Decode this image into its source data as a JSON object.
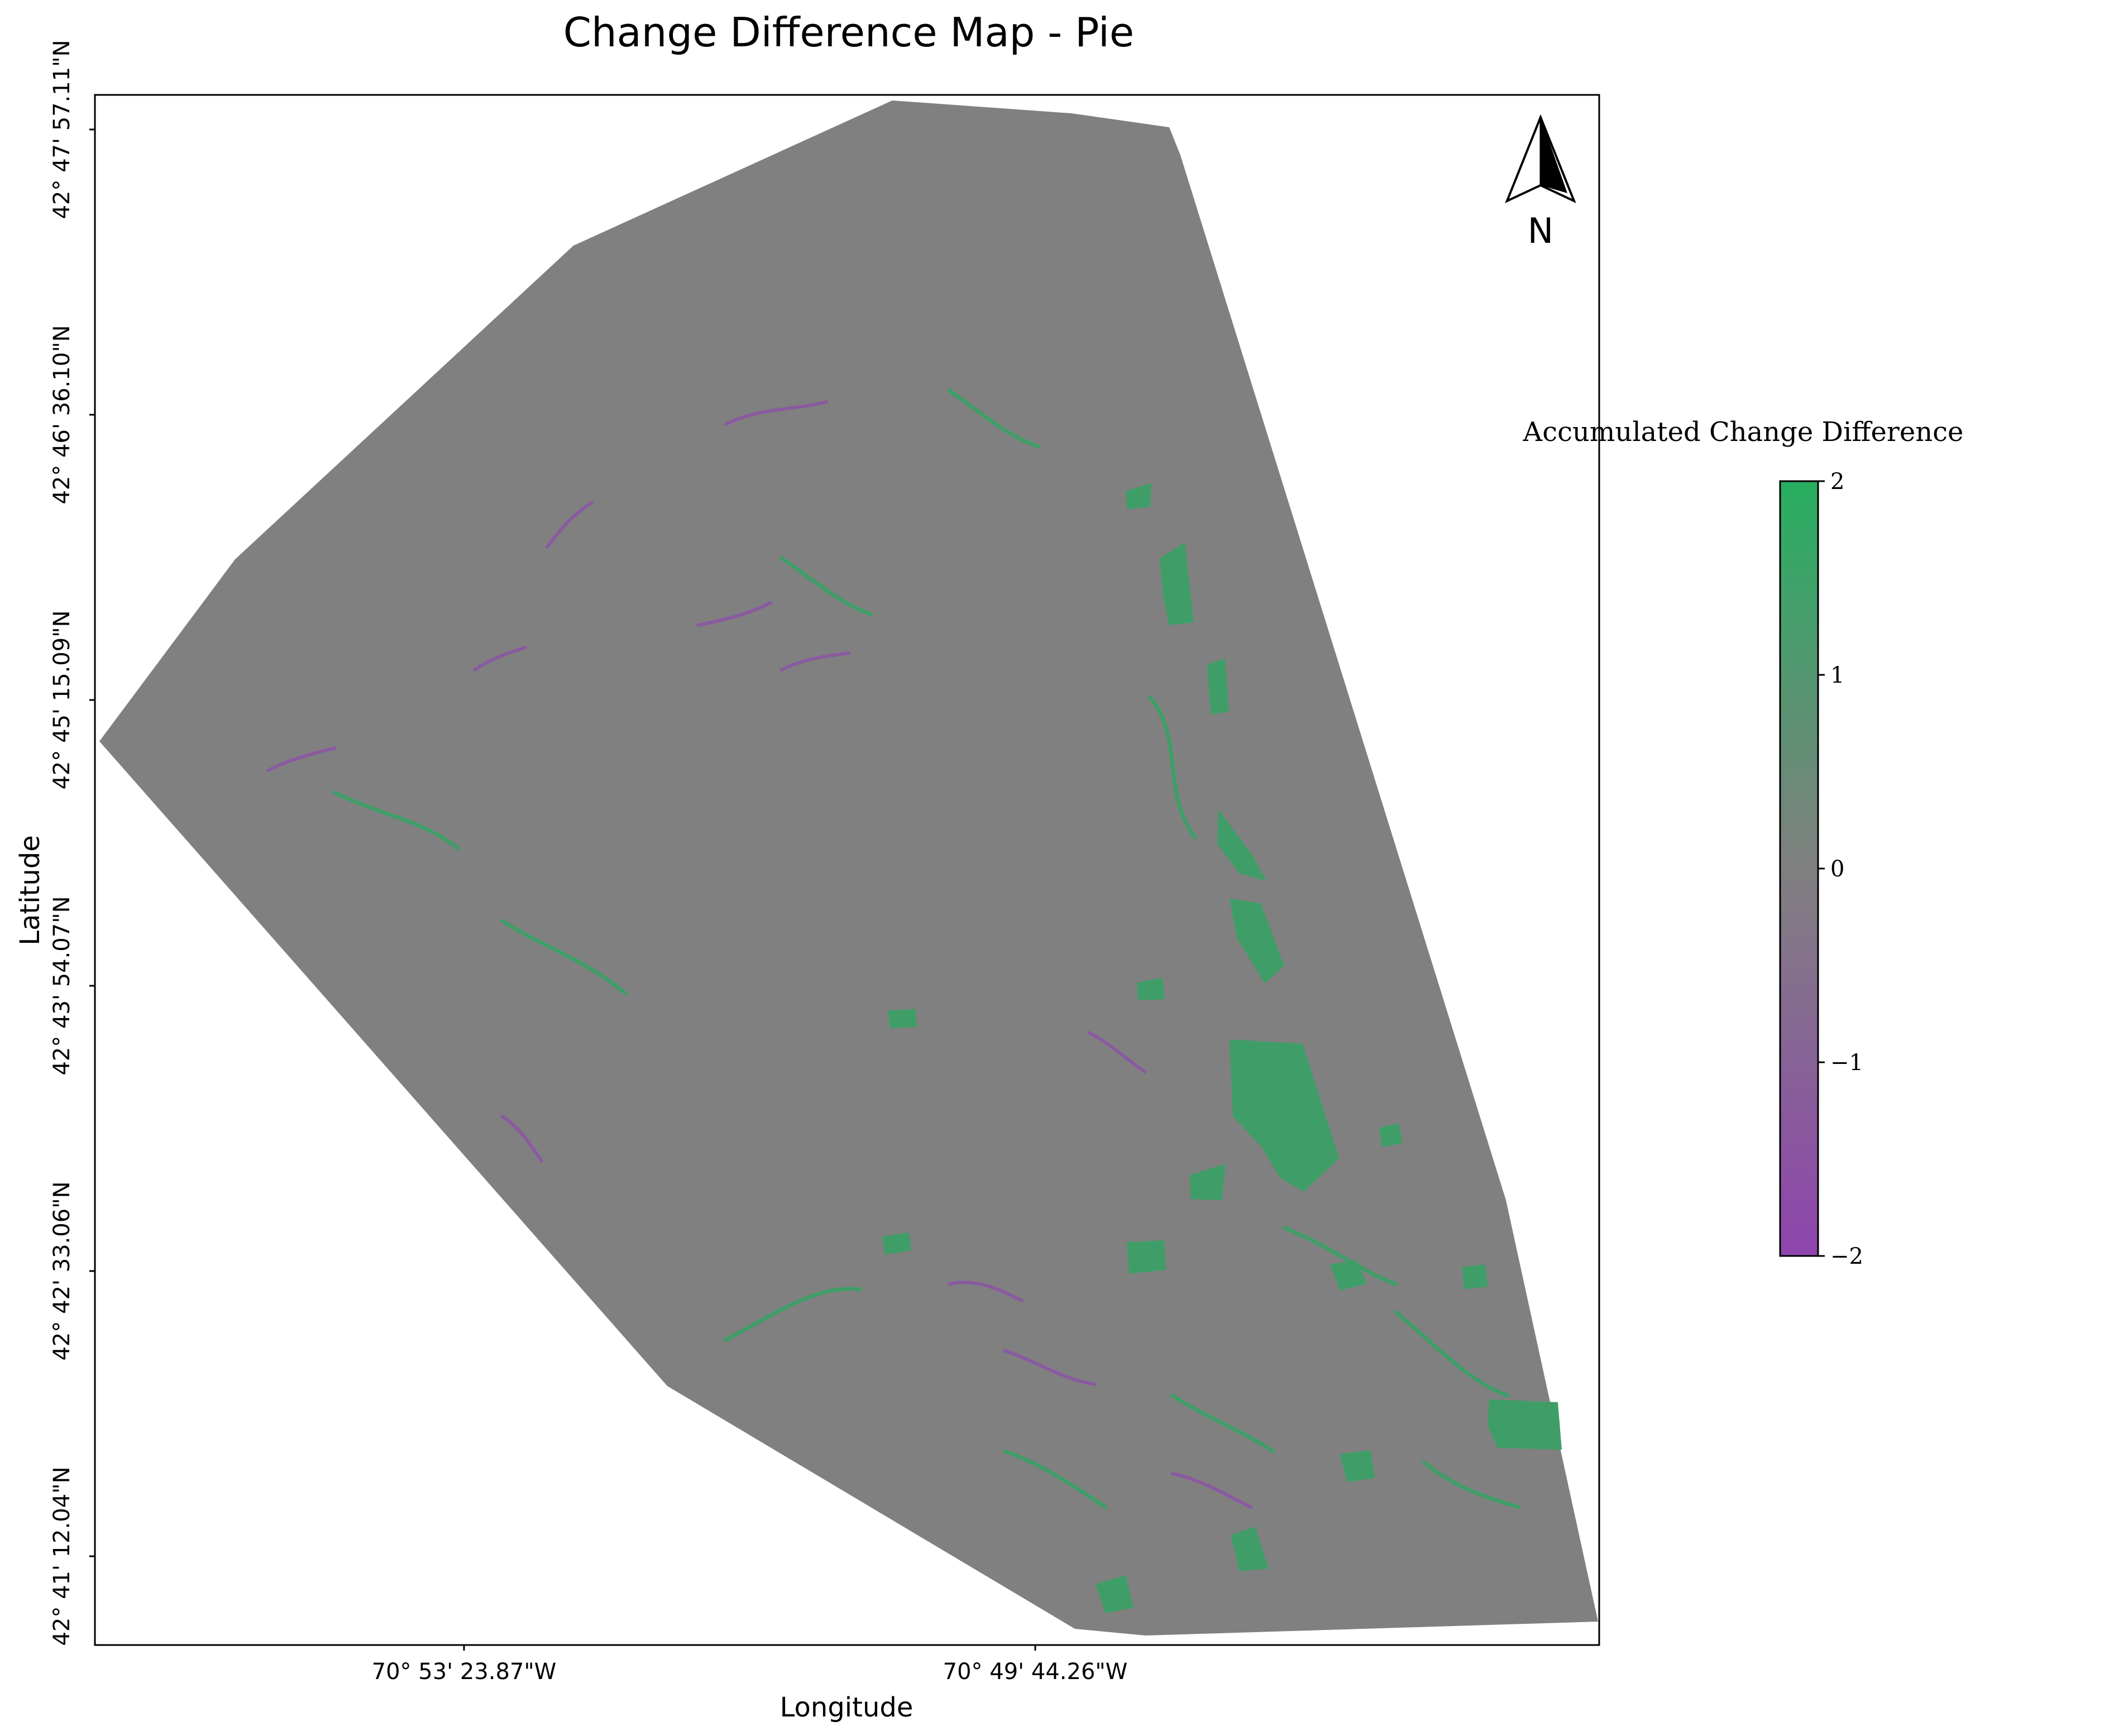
{
  "title": "Change Difference Map - Pie",
  "x_axis": {
    "label": "Longitude",
    "ticks": [
      "70° 53' 23.87\"W",
      "70° 49' 44.26\"W"
    ]
  },
  "y_axis": {
    "label": "Latitude",
    "ticks": [
      "42° 47' 57.11\"N",
      "42° 46' 36.10\"N",
      "42° 45' 15.09\"N",
      "42° 43' 54.07\"N",
      "42° 42' 33.06\"N",
      "42° 41' 12.04\"N"
    ]
  },
  "north_arrow": {
    "label": "N",
    "icon": "north-arrow-icon"
  },
  "colorbar": {
    "title": "Accumulated Change Difference",
    "min": -2,
    "max": 2,
    "ticks": [
      "2",
      "1",
      "0",
      "−1",
      "−2"
    ],
    "colors": {
      "low": "#8e44ad",
      "mid": "#808080",
      "high": "#27ae60"
    }
  },
  "map_colors": {
    "base": "#808080",
    "gain": "#27ae60",
    "loss": "#8e44ad"
  }
}
